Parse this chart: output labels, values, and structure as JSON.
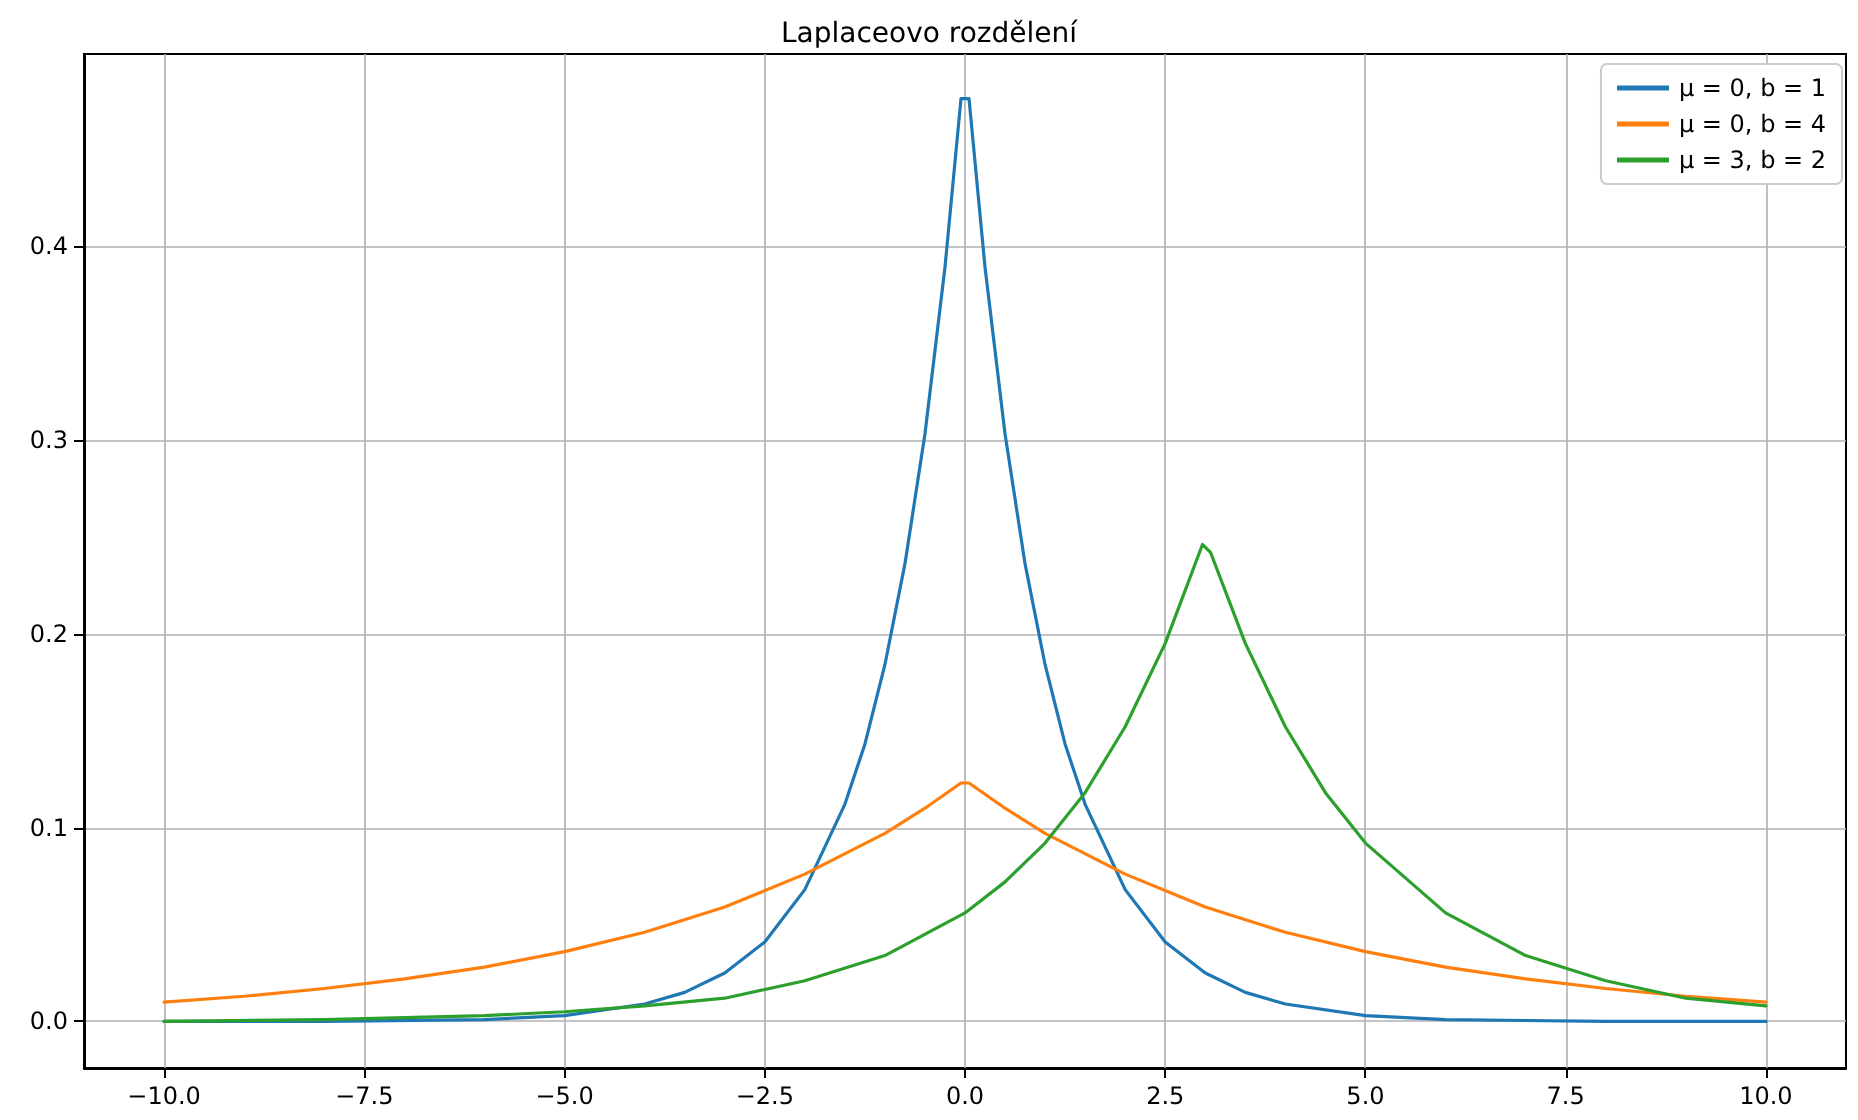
{
  "chart_data": {
    "type": "line",
    "title": "Laplaceovo rozdělení",
    "grid": true,
    "legend": "top right",
    "marker": "none",
    "line_style": "solid",
    "xlim": [
      -11,
      11
    ],
    "ylim": [
      -0.024,
      0.499
    ],
    "xticks": [
      {
        "value": -10,
        "label": "−10.0"
      },
      {
        "value": -7.5,
        "label": "−7.5"
      },
      {
        "value": -5,
        "label": "−5.0"
      },
      {
        "value": -2.5,
        "label": "−2.5"
      },
      {
        "value": 0,
        "label": "0.0"
      },
      2.5,
      {
        "value": 5,
        "label": "5.0"
      },
      7.5,
      {
        "value": 10,
        "label": "10.0"
      }
    ],
    "yticks": [
      {
        "value": 0,
        "label": "0.0"
      },
      0.1,
      0.2,
      0.3,
      0.4
    ],
    "series": [
      {
        "name": "μ = 0, b = 1",
        "color": "#1f77b4",
        "x": [
          -10,
          -8,
          -6,
          -5,
          -4,
          -3.5,
          -3,
          -2.5,
          -2,
          -1.5,
          -1.25,
          -1,
          -0.75,
          -0.5,
          -0.25,
          -0.05,
          0.05,
          0.25,
          0.5,
          0.75,
          1,
          1.25,
          1.5,
          2,
          2.5,
          3,
          3.5,
          4,
          5,
          6,
          8,
          10
        ],
        "values": [
          0,
          0,
          0.001,
          0.003,
          0.009,
          0.015,
          0.025,
          0.041,
          0.068,
          0.112,
          0.143,
          0.184,
          0.236,
          0.303,
          0.389,
          0.476,
          0.476,
          0.389,
          0.303,
          0.236,
          0.184,
          0.143,
          0.112,
          0.068,
          0.041,
          0.025,
          0.015,
          0.009,
          0.003,
          0.001,
          0,
          0
        ]
      },
      {
        "name": "μ = 0, b = 4",
        "color": "#ff7f0e",
        "x": [
          -10,
          -9,
          -8,
          -7,
          -6,
          -5,
          -4,
          -3,
          -2,
          -1,
          -0.5,
          -0.05,
          0.05,
          0.5,
          1,
          2,
          3,
          4,
          5,
          6,
          7,
          8,
          9,
          10
        ],
        "values": [
          0.01,
          0.013,
          0.017,
          0.022,
          0.028,
          0.036,
          0.046,
          0.059,
          0.076,
          0.097,
          0.11,
          0.123,
          0.123,
          0.11,
          0.097,
          0.076,
          0.059,
          0.046,
          0.036,
          0.028,
          0.022,
          0.017,
          0.013,
          0.01
        ]
      },
      {
        "name": "μ = 3, b = 2",
        "color": "#2ca02c",
        "x": [
          -10,
          -8,
          -6,
          -5,
          -4,
          -3,
          -2,
          -1,
          0,
          0.5,
          1,
          1.5,
          2,
          2.5,
          2.965,
          3.065,
          3.5,
          4,
          4.5,
          5,
          6,
          7,
          8,
          9,
          10
        ],
        "values": [
          0,
          0.001,
          0.003,
          0.005,
          0.008,
          0.012,
          0.021,
          0.034,
          0.056,
          0.072,
          0.092,
          0.118,
          0.152,
          0.195,
          0.246,
          0.242,
          0.195,
          0.152,
          0.118,
          0.092,
          0.056,
          0.034,
          0.021,
          0.012,
          0.008
        ]
      }
    ]
  }
}
